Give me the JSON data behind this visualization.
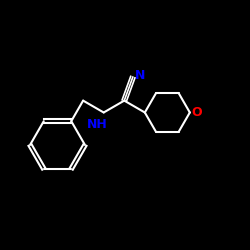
{
  "background_color": "#000000",
  "bond_color": "#ffffff",
  "N_color": "#0000ff",
  "O_color": "#ff0000",
  "NH_color": "#0000ff",
  "figsize": [
    2.5,
    2.5
  ],
  "dpi": 100,
  "xlim": [
    0,
    10
  ],
  "ylim": [
    0,
    10
  ]
}
